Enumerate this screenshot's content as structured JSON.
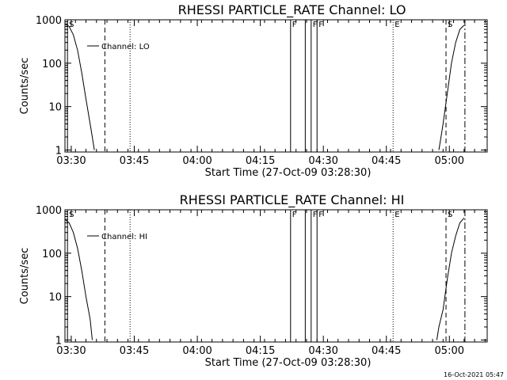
{
  "footer_timestamp": "16-Oct-2021 05:47",
  "chart_data": [
    {
      "type": "line",
      "title": "RHESSI PARTICLE_RATE Channel: LO",
      "xlabel": "Start Time (27-Oct-09 03:28:30)",
      "ylabel": "Counts/sec",
      "yscale": "log",
      "ylim": [
        0.9,
        1000
      ],
      "xlim_min": [
        0,
        100.5
      ],
      "x_ticks": [
        1.5,
        16.5,
        31.5,
        46.5,
        61.5,
        76.5,
        91.5
      ],
      "x_tick_labels": [
        "03:30",
        "03:45",
        "04:00",
        "04:15",
        "04:30",
        "04:45",
        "05:00"
      ],
      "y_ticks": [
        1,
        10,
        100,
        1000
      ],
      "y_tick_labels": [
        "1",
        "10",
        "100",
        "1000"
      ],
      "legend": {
        "label": "Channel: LO",
        "placement": "top-left"
      },
      "series": [
        {
          "name": "LO",
          "segments": [
            {
              "x": [
                0,
                1,
                2,
                3,
                4,
                5,
                6,
                6.5,
                7
              ],
              "y": [
                800,
                700,
                450,
                200,
                60,
                15,
                4,
                2,
                1
              ]
            },
            {
              "x": [
                89,
                89.5,
                90,
                91,
                92,
                93,
                94,
                95
              ],
              "y": [
                1,
                2,
                4,
                20,
                100,
                300,
                600,
                750
              ]
            }
          ]
        }
      ],
      "markers": [
        {
          "x": 0.6,
          "style": "solid",
          "label": "S"
        },
        {
          "x": 9.5,
          "style": "dashed",
          "label": ""
        },
        {
          "x": 15.5,
          "style": "dotted",
          "label": ""
        },
        {
          "x": 53.7,
          "style": "solid",
          "label": "F"
        },
        {
          "x": 57.2,
          "style": "solid",
          "label": ""
        },
        {
          "x": 58.6,
          "style": "solid",
          "label": "F"
        },
        {
          "x": 60.0,
          "style": "solid",
          "label": "F"
        },
        {
          "x": 78.1,
          "style": "dotted",
          "label": "E"
        },
        {
          "x": 90.7,
          "style": "dashed",
          "label": "S"
        },
        {
          "x": 95.2,
          "style": "dashdot",
          "label": ""
        }
      ]
    },
    {
      "type": "line",
      "title": "RHESSI PARTICLE_RATE Channel: HI",
      "xlabel": "Start Time (27-Oct-09 03:28:30)",
      "ylabel": "Counts/sec",
      "yscale": "log",
      "ylim": [
        0.9,
        1000
      ],
      "xlim_min": [
        0,
        100.5
      ],
      "x_ticks": [
        1.5,
        16.5,
        31.5,
        46.5,
        61.5,
        76.5,
        91.5
      ],
      "x_tick_labels": [
        "03:30",
        "03:45",
        "04:00",
        "04:15",
        "04:30",
        "04:45",
        "05:00"
      ],
      "y_ticks": [
        1,
        10,
        100,
        1000
      ],
      "y_tick_labels": [
        "1",
        "10",
        "100",
        "1000"
      ],
      "legend": {
        "label": "Channel: HI",
        "placement": "top-left"
      },
      "series": [
        {
          "name": "HI",
          "segments": [
            {
              "x": [
                0,
                1,
                2,
                3,
                4,
                5,
                6,
                6.5
              ],
              "y": [
                600,
                500,
                300,
                130,
                40,
                10,
                3,
                1
              ]
            },
            {
              "x": [
                88.5,
                89,
                90,
                91,
                92,
                93,
                94,
                95
              ],
              "y": [
                1,
                2,
                5,
                25,
                100,
                250,
                500,
                650
              ]
            }
          ]
        }
      ],
      "markers": [
        {
          "x": 0.6,
          "style": "solid",
          "label": "S"
        },
        {
          "x": 9.5,
          "style": "dashed",
          "label": ""
        },
        {
          "x": 15.5,
          "style": "dotted",
          "label": ""
        },
        {
          "x": 53.7,
          "style": "solid",
          "label": "F"
        },
        {
          "x": 57.2,
          "style": "solid",
          "label": ""
        },
        {
          "x": 58.6,
          "style": "solid",
          "label": "F"
        },
        {
          "x": 60.0,
          "style": "solid",
          "label": "F"
        },
        {
          "x": 78.1,
          "style": "dotted",
          "label": "E"
        },
        {
          "x": 90.7,
          "style": "dashed",
          "label": "S"
        },
        {
          "x": 95.2,
          "style": "dashdot",
          "label": ""
        }
      ]
    }
  ]
}
